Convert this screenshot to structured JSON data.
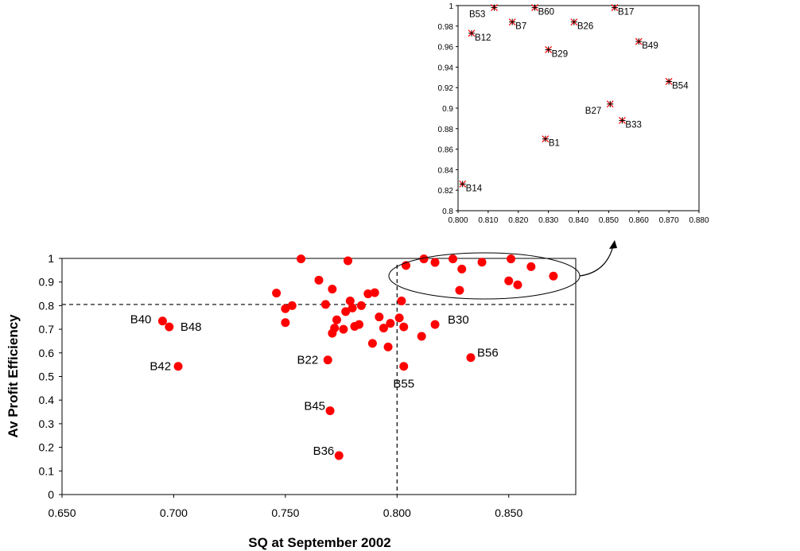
{
  "chart_data": [
    {
      "type": "scatter",
      "xlabel": "SQ at September 2002",
      "ylabel": "Av Profit Efficiency",
      "xlim": [
        0.65,
        0.88
      ],
      "ylim": [
        0,
        1
      ],
      "x_ticks": [
        "0.650",
        "0.700",
        "0.750",
        "0.800",
        "0.850"
      ],
      "y_ticks": [
        "0",
        "0.1",
        "0.2",
        "0.3",
        "0.4",
        "0.5",
        "0.6",
        "0.7",
        "0.8",
        "0.9",
        "1"
      ],
      "reference_lines": {
        "x": 0.8,
        "y": 0.805,
        "style": "dashed"
      },
      "marker_color": "#ff0000",
      "points": [
        {
          "x": 0.695,
          "y": 0.735,
          "label": "B40"
        },
        {
          "x": 0.698,
          "y": 0.71,
          "label": "B48"
        },
        {
          "x": 0.702,
          "y": 0.543,
          "label": "B42"
        },
        {
          "x": 0.746,
          "y": 0.853
        },
        {
          "x": 0.75,
          "y": 0.787
        },
        {
          "x": 0.75,
          "y": 0.728
        },
        {
          "x": 0.753,
          "y": 0.8
        },
        {
          "x": 0.757,
          "y": 0.998
        },
        {
          "x": 0.765,
          "y": 0.908
        },
        {
          "x": 0.768,
          "y": 0.805
        },
        {
          "x": 0.769,
          "y": 0.57,
          "label": "B22"
        },
        {
          "x": 0.77,
          "y": 0.355,
          "label": "B45"
        },
        {
          "x": 0.771,
          "y": 0.87
        },
        {
          "x": 0.771,
          "y": 0.683
        },
        {
          "x": 0.772,
          "y": 0.705
        },
        {
          "x": 0.773,
          "y": 0.74
        },
        {
          "x": 0.774,
          "y": 0.165,
          "label": "B36"
        },
        {
          "x": 0.776,
          "y": 0.7
        },
        {
          "x": 0.777,
          "y": 0.775
        },
        {
          "x": 0.778,
          "y": 0.99
        },
        {
          "x": 0.779,
          "y": 0.82
        },
        {
          "x": 0.78,
          "y": 0.79
        },
        {
          "x": 0.781,
          "y": 0.712
        },
        {
          "x": 0.783,
          "y": 0.72
        },
        {
          "x": 0.784,
          "y": 0.8
        },
        {
          "x": 0.787,
          "y": 0.85
        },
        {
          "x": 0.789,
          "y": 0.64
        },
        {
          "x": 0.79,
          "y": 0.855
        },
        {
          "x": 0.792,
          "y": 0.752
        },
        {
          "x": 0.794,
          "y": 0.705
        },
        {
          "x": 0.796,
          "y": 0.625
        },
        {
          "x": 0.797,
          "y": 0.725
        },
        {
          "x": 0.801,
          "y": 0.748
        },
        {
          "x": 0.802,
          "y": 0.82
        },
        {
          "x": 0.803,
          "y": 0.71
        },
        {
          "x": 0.803,
          "y": 0.543,
          "label": "B55"
        },
        {
          "x": 0.804,
          "y": 0.97
        },
        {
          "x": 0.811,
          "y": 0.67
        },
        {
          "x": 0.812,
          "y": 0.998
        },
        {
          "x": 0.817,
          "y": 0.72,
          "label": "B30"
        },
        {
          "x": 0.817,
          "y": 0.983
        },
        {
          "x": 0.825,
          "y": 0.998
        },
        {
          "x": 0.828,
          "y": 0.865
        },
        {
          "x": 0.829,
          "y": 0.955
        },
        {
          "x": 0.833,
          "y": 0.58,
          "label": "B56"
        },
        {
          "x": 0.838,
          "y": 0.984
        },
        {
          "x": 0.85,
          "y": 0.905
        },
        {
          "x": 0.851,
          "y": 0.998
        },
        {
          "x": 0.854,
          "y": 0.888
        },
        {
          "x": 0.86,
          "y": 0.965
        },
        {
          "x": 0.87,
          "y": 0.925
        }
      ]
    },
    {
      "type": "scatter",
      "inset_of": "upper-right cluster (ellipse)",
      "xlim": [
        0.8,
        0.88
      ],
      "ylim": [
        0.8,
        1
      ],
      "x_ticks": [
        "0.800",
        "0.810",
        "0.820",
        "0.830",
        "0.840",
        "0.850",
        "0.860",
        "0.870",
        "0.880"
      ],
      "y_ticks": [
        "0.8",
        "0.82",
        "0.84",
        "0.86",
        "0.88",
        "0.9",
        "0.92",
        "0.94",
        "0.96",
        "0.98",
        "1"
      ],
      "marker_color": "#ff0000",
      "points": [
        {
          "x": 0.812,
          "y": 0.998,
          "label": "B53",
          "side": "left"
        },
        {
          "x": 0.8255,
          "y": 0.998,
          "label": "B60",
          "side": "right"
        },
        {
          "x": 0.852,
          "y": 0.998,
          "label": "B17",
          "side": "right"
        },
        {
          "x": 0.818,
          "y": 0.984,
          "label": "B7",
          "side": "right"
        },
        {
          "x": 0.8385,
          "y": 0.984,
          "label": "B26",
          "side": "right"
        },
        {
          "x": 0.8045,
          "y": 0.973,
          "label": "B12",
          "side": "right"
        },
        {
          "x": 0.86,
          "y": 0.965,
          "label": "B49",
          "side": "right"
        },
        {
          "x": 0.83,
          "y": 0.957,
          "label": "B29",
          "side": "right"
        },
        {
          "x": 0.87,
          "y": 0.926,
          "label": "B54",
          "side": "right"
        },
        {
          "x": 0.8505,
          "y": 0.904,
          "label": "B27",
          "side": "left"
        },
        {
          "x": 0.8545,
          "y": 0.888,
          "label": "B33",
          "side": "right"
        },
        {
          "x": 0.829,
          "y": 0.87,
          "label": "B1",
          "side": "right"
        },
        {
          "x": 0.8015,
          "y": 0.826,
          "label": "B14",
          "side": "right"
        }
      ]
    }
  ]
}
